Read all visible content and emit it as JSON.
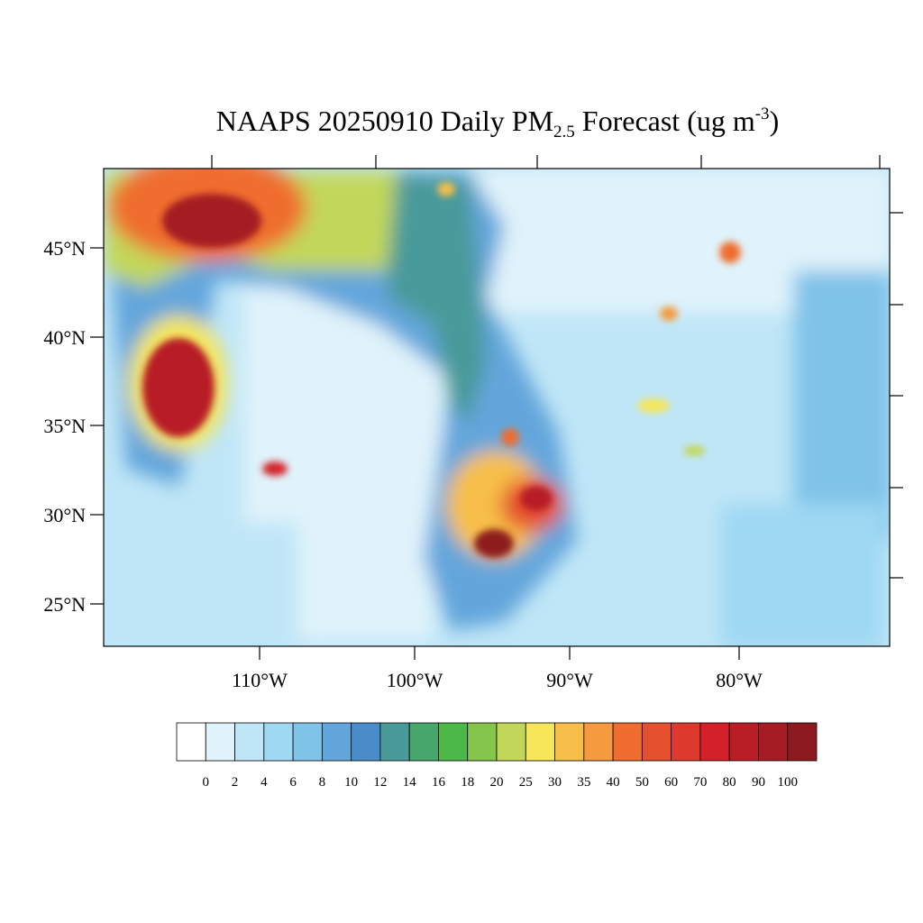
{
  "title": {
    "main": "NAAPS 20250910 Daily PM",
    "subscript": "2.5",
    "rest": "Forecast (ug m",
    "superscript": "-3",
    "end": ")"
  },
  "map": {
    "lat_labels": [
      "45°N",
      "40°N",
      "35°N",
      "30°N",
      "25°N"
    ],
    "lon_labels": [
      "110°W",
      "100°W",
      "90°W",
      "80°W"
    ]
  },
  "colorbar": {
    "levels": [
      0,
      2,
      4,
      6,
      8,
      10,
      12,
      14,
      16,
      18,
      20,
      25,
      30,
      35,
      40,
      50,
      60,
      70,
      80,
      90,
      100
    ],
    "colors": [
      "#ffffff",
      "#e0f3fb",
      "#bfe6f7",
      "#9fd8f3",
      "#80c3e8",
      "#63a6db",
      "#4a8cc9",
      "#4a9a9a",
      "#46a66c",
      "#4cb848",
      "#86c54c",
      "#c2d75a",
      "#f5e65a",
      "#f7bf4a",
      "#f59a3e",
      "#ef6d2e",
      "#e5512e",
      "#dc3a2c",
      "#d42029",
      "#b81e26",
      "#a51c24",
      "#8d1a1e"
    ]
  }
}
